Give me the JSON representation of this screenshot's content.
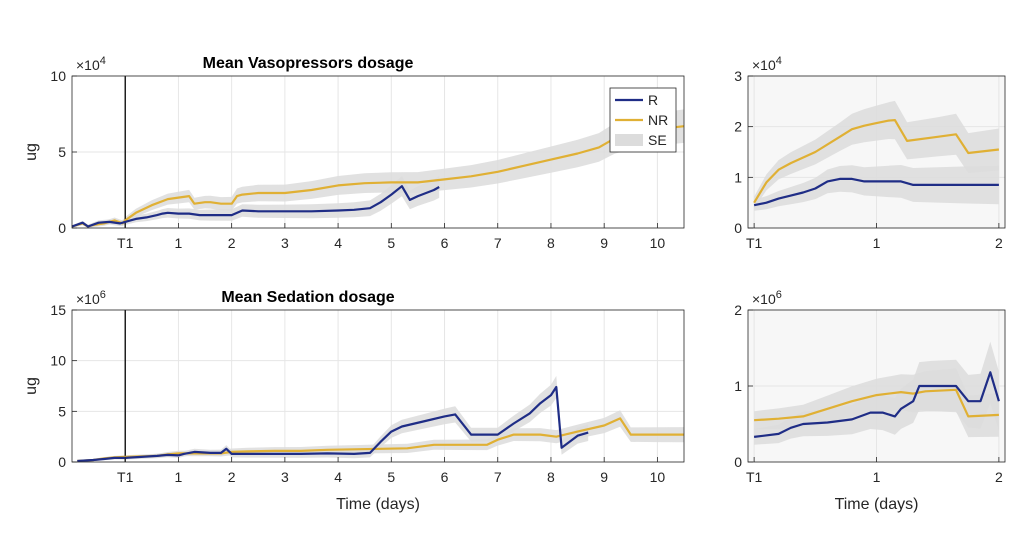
{
  "colors": {
    "R": "#1f2d86",
    "NR": "#e0b034",
    "SE": "#dcdcdc",
    "marker": "#000000"
  },
  "chart_data": [
    {
      "id": "vaso-main",
      "type": "line",
      "title": "Mean Vasopressors dosage",
      "ylabel": "ug",
      "xlabel": "",
      "xlim": [
        -1.0,
        10.5
      ],
      "ylim": [
        0,
        10
      ],
      "exponent_label": "×10",
      "exponent_power": "4",
      "xticks": [
        0,
        1,
        2,
        3,
        4,
        5,
        6,
        7,
        8,
        9,
        10
      ],
      "xtick_labels": [
        "T1",
        "1",
        "2",
        "3",
        "4",
        "5",
        "6",
        "7",
        "8",
        "9",
        "10"
      ],
      "yticks": [
        0,
        5,
        10
      ],
      "ytick_labels": [
        "0",
        "5",
        "10"
      ],
      "grid": true,
      "marker_line_x": 0,
      "legend": {
        "position": "top-right",
        "entries": [
          "R",
          "NR",
          "SE"
        ]
      },
      "series": [
        {
          "name": "R",
          "x": [
            -1.0,
            -0.8,
            -0.7,
            -0.5,
            -0.3,
            -0.1,
            0,
            0.2,
            0.4,
            0.6,
            0.7,
            0.8,
            1.0,
            1.2,
            1.4,
            1.6,
            2.0,
            2.2,
            2.5,
            3.0,
            3.5,
            4.0,
            4.3,
            4.6,
            4.8,
            5.0,
            5.2,
            5.35,
            5.5,
            5.8,
            5.9
          ],
          "values": [
            0.1,
            0.35,
            0.1,
            0.35,
            0.4,
            0.3,
            0.4,
            0.6,
            0.7,
            0.85,
            0.95,
            1.0,
            0.95,
            0.95,
            0.85,
            0.85,
            0.85,
            1.15,
            1.1,
            1.1,
            1.1,
            1.15,
            1.2,
            1.3,
            1.7,
            2.2,
            2.75,
            1.85,
            2.1,
            2.5,
            2.7
          ]
        },
        {
          "name": "NR",
          "x": [
            -1.0,
            -0.8,
            -0.7,
            -0.6,
            -0.4,
            -0.2,
            -0.05,
            0,
            0.2,
            0.5,
            0.8,
            1.0,
            1.2,
            1.3,
            1.5,
            1.6,
            1.8,
            2.0,
            2.1,
            2.2,
            2.5,
            3.0,
            3.5,
            4.0,
            4.5,
            5.0,
            5.5,
            6.0,
            6.5,
            7.0,
            7.5,
            8.0,
            8.5,
            8.9,
            9.2,
            9.5,
            10.0,
            10.5
          ],
          "values": [
            0.1,
            0.3,
            0.1,
            0.2,
            0.3,
            0.5,
            0.3,
            0.5,
            1.0,
            1.5,
            1.9,
            2.0,
            2.1,
            1.6,
            1.7,
            1.7,
            1.6,
            1.6,
            2.1,
            2.2,
            2.3,
            2.3,
            2.5,
            2.8,
            2.95,
            3.0,
            3.0,
            3.2,
            3.4,
            3.7,
            4.1,
            4.5,
            4.9,
            5.3,
            5.9,
            6.2,
            6.5,
            6.7
          ]
        }
      ]
    },
    {
      "id": "vaso-zoom",
      "type": "line",
      "title": "",
      "ylabel": "",
      "xlabel": "",
      "xlim": [
        -0.05,
        2.05
      ],
      "ylim": [
        0,
        3
      ],
      "exponent_label": "×10",
      "exponent_power": "4",
      "xticks": [
        0,
        1,
        2
      ],
      "xtick_labels": [
        "T1",
        "1",
        "2"
      ],
      "yticks": [
        0,
        1,
        2,
        3
      ],
      "ytick_labels": [
        "0",
        "1",
        "2",
        "3"
      ],
      "grid": true,
      "series": [
        {
          "name": "R",
          "x": [
            0,
            0.1,
            0.2,
            0.3,
            0.4,
            0.5,
            0.6,
            0.7,
            0.8,
            0.9,
            1.0,
            1.1,
            1.2,
            1.3,
            1.5,
            1.7,
            2.0
          ],
          "values": [
            0.45,
            0.5,
            0.58,
            0.64,
            0.7,
            0.78,
            0.92,
            0.97,
            0.97,
            0.92,
            0.92,
            0.92,
            0.92,
            0.85,
            0.85,
            0.85,
            0.85
          ]
        },
        {
          "name": "NR",
          "x": [
            0,
            0.1,
            0.2,
            0.3,
            0.5,
            0.7,
            0.8,
            0.9,
            1.0,
            1.1,
            1.15,
            1.25,
            1.5,
            1.65,
            1.75,
            2.0
          ],
          "values": [
            0.5,
            0.9,
            1.15,
            1.28,
            1.5,
            1.8,
            1.95,
            2.02,
            2.07,
            2.12,
            2.13,
            1.72,
            1.8,
            1.85,
            1.48,
            1.55
          ]
        }
      ]
    },
    {
      "id": "sed-main",
      "type": "line",
      "title": "Mean Sedation dosage",
      "ylabel": "ug",
      "xlabel": "Time (days)",
      "xlim": [
        -1.0,
        10.5
      ],
      "ylim": [
        0,
        15
      ],
      "exponent_label": "×10",
      "exponent_power": "6",
      "xticks": [
        0,
        1,
        2,
        3,
        4,
        5,
        6,
        7,
        8,
        9,
        10
      ],
      "xtick_labels": [
        "T1",
        "1",
        "2",
        "3",
        "4",
        "5",
        "6",
        "7",
        "8",
        "9",
        "10"
      ],
      "yticks": [
        0,
        5,
        10,
        15
      ],
      "ytick_labels": [
        "0",
        "5",
        "10",
        "15"
      ],
      "grid": true,
      "marker_line_x": 0,
      "series": [
        {
          "name": "R",
          "x": [
            -0.9,
            -0.6,
            -0.4,
            -0.2,
            0,
            0.3,
            0.6,
            0.8,
            1.0,
            1.1,
            1.3,
            1.6,
            1.8,
            1.9,
            2.0,
            2.3,
            2.8,
            3.3,
            3.8,
            4.3,
            4.6,
            4.8,
            5.0,
            5.2,
            5.6,
            6.0,
            6.2,
            6.5,
            7.0,
            7.3,
            7.6,
            7.8,
            8.0,
            8.1,
            8.2,
            8.5,
            8.7
          ],
          "values": [
            0.1,
            0.2,
            0.3,
            0.4,
            0.4,
            0.5,
            0.6,
            0.7,
            0.65,
            0.8,
            1.0,
            0.9,
            0.9,
            1.3,
            0.8,
            0.8,
            0.8,
            0.8,
            0.85,
            0.8,
            0.9,
            2.0,
            3.0,
            3.5,
            4.0,
            4.5,
            4.7,
            2.7,
            2.7,
            3.8,
            4.8,
            5.8,
            6.6,
            7.4,
            1.4,
            2.6,
            2.9
          ]
        },
        {
          "name": "NR",
          "x": [
            -0.9,
            -0.6,
            -0.4,
            -0.2,
            0,
            0.3,
            0.6,
            0.8,
            1.0,
            1.3,
            1.6,
            1.8,
            2.0,
            2.3,
            2.8,
            3.3,
            3.8,
            4.3,
            4.8,
            5.3,
            5.8,
            6.3,
            6.8,
            7.0,
            7.3,
            7.8,
            8.1,
            8.5,
            9.0,
            9.3,
            9.5,
            10.0,
            10.5
          ],
          "values": [
            0.1,
            0.2,
            0.35,
            0.45,
            0.5,
            0.55,
            0.6,
            0.75,
            0.85,
            0.85,
            0.85,
            0.85,
            1.0,
            1.05,
            1.1,
            1.1,
            1.2,
            1.25,
            1.3,
            1.35,
            1.7,
            1.7,
            1.7,
            2.2,
            2.7,
            2.7,
            2.5,
            3.0,
            3.6,
            4.3,
            2.7,
            2.7,
            2.7
          ]
        }
      ]
    },
    {
      "id": "sed-zoom",
      "type": "line",
      "title": "",
      "ylabel": "",
      "xlabel": "Time (days)",
      "xlim": [
        -0.05,
        2.05
      ],
      "ylim": [
        0,
        2
      ],
      "exponent_label": "×10",
      "exponent_power": "6",
      "xticks": [
        0,
        1,
        2
      ],
      "xtick_labels": [
        "T1",
        "1",
        "2"
      ],
      "yticks": [
        0,
        1,
        2
      ],
      "ytick_labels": [
        "0",
        "1",
        "2"
      ],
      "grid": true,
      "series": [
        {
          "name": "R",
          "x": [
            0,
            0.2,
            0.3,
            0.4,
            0.6,
            0.8,
            0.95,
            1.05,
            1.15,
            1.2,
            1.3,
            1.35,
            1.45,
            1.65,
            1.75,
            1.85,
            1.93,
            2.0
          ],
          "values": [
            0.33,
            0.37,
            0.45,
            0.5,
            0.52,
            0.56,
            0.65,
            0.65,
            0.6,
            0.7,
            0.8,
            1.0,
            1.0,
            1.0,
            0.8,
            0.8,
            1.18,
            0.8
          ]
        },
        {
          "name": "NR",
          "x": [
            0,
            0.2,
            0.4,
            0.6,
            0.8,
            1.0,
            1.2,
            1.3,
            1.4,
            1.65,
            1.75,
            2.0
          ],
          "values": [
            0.55,
            0.57,
            0.6,
            0.7,
            0.8,
            0.88,
            0.92,
            0.9,
            0.93,
            0.95,
            0.6,
            0.62
          ]
        }
      ]
    }
  ]
}
